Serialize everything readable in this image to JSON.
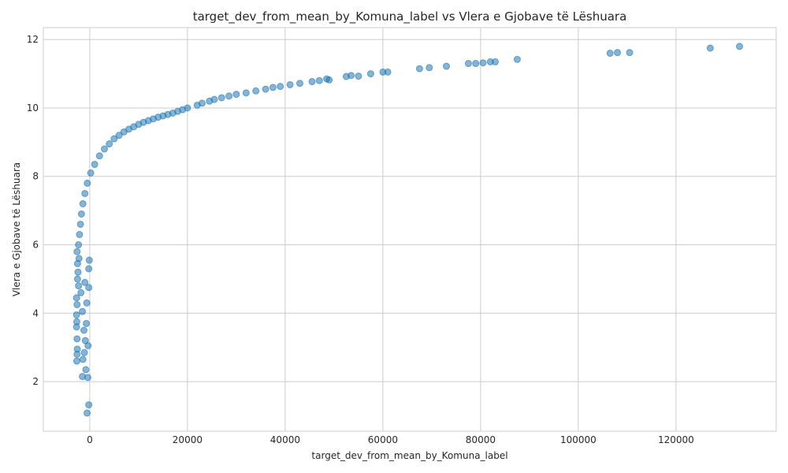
{
  "chart_data": {
    "type": "scatter",
    "title": "target_dev_from_mean_by_Komuna_label vs Vlera e Gjobave të Lëshuara",
    "xlabel": "target_dev_from_mean_by_Komuna_label",
    "ylabel": "Vlera e Gjobave të Lëshuara",
    "xlim": [
      -9500,
      140500
    ],
    "ylim": [
      0.55,
      12.35
    ],
    "xticks": [
      0,
      20000,
      40000,
      60000,
      80000,
      100000,
      120000
    ],
    "xtick_labels": [
      "0",
      "20000",
      "40000",
      "60000",
      "80000",
      "100000",
      "120000"
    ],
    "yticks": [
      2,
      4,
      6,
      8,
      10,
      12
    ],
    "ytick_labels": [
      "2",
      "4",
      "6",
      "8",
      "10",
      "12"
    ],
    "grid": true,
    "marker_color": "#1f77b4",
    "marker_alpha": 0.55,
    "points": [
      {
        "x": -550,
        "y": 1.08
      },
      {
        "x": -200,
        "y": 1.32
      },
      {
        "x": -1500,
        "y": 2.15
      },
      {
        "x": -400,
        "y": 2.12
      },
      {
        "x": -2650,
        "y": 2.6
      },
      {
        "x": -1400,
        "y": 2.65
      },
      {
        "x": -800,
        "y": 2.35
      },
      {
        "x": -2600,
        "y": 2.8
      },
      {
        "x": -2550,
        "y": 2.95
      },
      {
        "x": -1100,
        "y": 2.85
      },
      {
        "x": -350,
        "y": 3.05
      },
      {
        "x": -2600,
        "y": 3.25
      },
      {
        "x": -900,
        "y": 3.2
      },
      {
        "x": -2700,
        "y": 3.6
      },
      {
        "x": -2650,
        "y": 3.75
      },
      {
        "x": -2700,
        "y": 3.95
      },
      {
        "x": -1200,
        "y": 3.5
      },
      {
        "x": -700,
        "y": 3.7
      },
      {
        "x": -1500,
        "y": 4.05
      },
      {
        "x": -600,
        "y": 4.3
      },
      {
        "x": -2600,
        "y": 4.25
      },
      {
        "x": -2700,
        "y": 4.45
      },
      {
        "x": -1800,
        "y": 4.6
      },
      {
        "x": -2300,
        "y": 4.8
      },
      {
        "x": -2500,
        "y": 5.0
      },
      {
        "x": -1000,
        "y": 4.9
      },
      {
        "x": -200,
        "y": 4.75
      },
      {
        "x": -2400,
        "y": 5.2
      },
      {
        "x": -200,
        "y": 5.3
      },
      {
        "x": -2500,
        "y": 5.45
      },
      {
        "x": -2200,
        "y": 5.6
      },
      {
        "x": -100,
        "y": 5.55
      },
      {
        "x": -2600,
        "y": 5.8
      },
      {
        "x": -2300,
        "y": 6.0
      },
      {
        "x": -2100,
        "y": 6.3
      },
      {
        "x": -1900,
        "y": 6.6
      },
      {
        "x": -1700,
        "y": 6.9
      },
      {
        "x": -1400,
        "y": 7.2
      },
      {
        "x": -1000,
        "y": 7.5
      },
      {
        "x": -500,
        "y": 7.8
      },
      {
        "x": 200,
        "y": 8.1
      },
      {
        "x": 1000,
        "y": 8.35
      },
      {
        "x": 2000,
        "y": 8.6
      },
      {
        "x": 3000,
        "y": 8.8
      },
      {
        "x": 4000,
        "y": 8.95
      },
      {
        "x": 5000,
        "y": 9.1
      },
      {
        "x": 6000,
        "y": 9.2
      },
      {
        "x": 7000,
        "y": 9.3
      },
      {
        "x": 8000,
        "y": 9.38
      },
      {
        "x": 9000,
        "y": 9.45
      },
      {
        "x": 10000,
        "y": 9.52
      },
      {
        "x": 11000,
        "y": 9.58
      },
      {
        "x": 12000,
        "y": 9.63
      },
      {
        "x": 13000,
        "y": 9.68
      },
      {
        "x": 14000,
        "y": 9.73
      },
      {
        "x": 15000,
        "y": 9.77
      },
      {
        "x": 16000,
        "y": 9.81
      },
      {
        "x": 17000,
        "y": 9.85
      },
      {
        "x": 18000,
        "y": 9.9
      },
      {
        "x": 19000,
        "y": 9.95
      },
      {
        "x": 20000,
        "y": 10.0
      },
      {
        "x": 22000,
        "y": 10.08
      },
      {
        "x": 23000,
        "y": 10.14
      },
      {
        "x": 24500,
        "y": 10.2
      },
      {
        "x": 25500,
        "y": 10.25
      },
      {
        "x": 27000,
        "y": 10.3
      },
      {
        "x": 28500,
        "y": 10.35
      },
      {
        "x": 30000,
        "y": 10.4
      },
      {
        "x": 32000,
        "y": 10.44
      },
      {
        "x": 34000,
        "y": 10.5
      },
      {
        "x": 36000,
        "y": 10.55
      },
      {
        "x": 37500,
        "y": 10.6
      },
      {
        "x": 39000,
        "y": 10.63
      },
      {
        "x": 41000,
        "y": 10.68
      },
      {
        "x": 43000,
        "y": 10.72
      },
      {
        "x": 45500,
        "y": 10.77
      },
      {
        "x": 47000,
        "y": 10.8
      },
      {
        "x": 48500,
        "y": 10.85
      },
      {
        "x": 49000,
        "y": 10.82
      },
      {
        "x": 52500,
        "y": 10.92
      },
      {
        "x": 53500,
        "y": 10.95
      },
      {
        "x": 55000,
        "y": 10.93
      },
      {
        "x": 57500,
        "y": 11.0
      },
      {
        "x": 60000,
        "y": 11.05
      },
      {
        "x": 61000,
        "y": 11.05
      },
      {
        "x": 67500,
        "y": 11.15
      },
      {
        "x": 69500,
        "y": 11.18
      },
      {
        "x": 73000,
        "y": 11.22
      },
      {
        "x": 77500,
        "y": 11.3
      },
      {
        "x": 79000,
        "y": 11.3
      },
      {
        "x": 80500,
        "y": 11.32
      },
      {
        "x": 82000,
        "y": 11.35
      },
      {
        "x": 83000,
        "y": 11.35
      },
      {
        "x": 87500,
        "y": 11.42
      },
      {
        "x": 106500,
        "y": 11.6
      },
      {
        "x": 108000,
        "y": 11.62
      },
      {
        "x": 110500,
        "y": 11.62
      },
      {
        "x": 127000,
        "y": 11.75
      },
      {
        "x": 133000,
        "y": 11.8
      }
    ]
  }
}
